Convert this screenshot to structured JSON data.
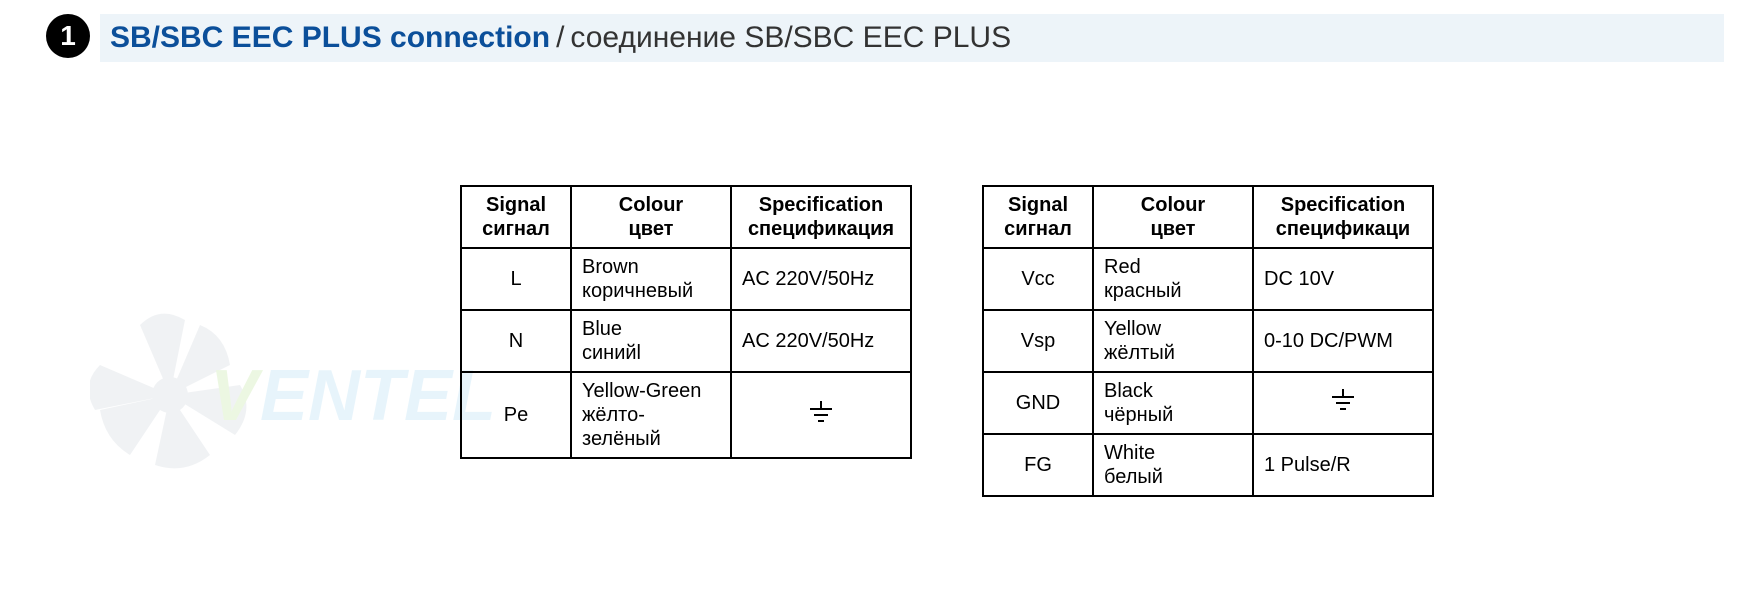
{
  "header": {
    "bullet": "1",
    "title_en": "SB/SBC EEC PLUS connection",
    "separator": " / ",
    "title_ru": "соединение SB/SBC EEC PLUS",
    "bar_background": "#edf4f9",
    "title_en_color": "#0b4f9a",
    "title_ru_color": "#333333",
    "title_fontsize": 30
  },
  "watermark": {
    "text": "VENTEL",
    "fan_color": "#9caab5",
    "text_colors": [
      "#7ecb3a",
      "#5cb9e6"
    ],
    "opacity": 0.14
  },
  "tables": {
    "border_color": "#000000",
    "border_width": 2,
    "font_size": 20,
    "header": {
      "signal_en": "Signal",
      "signal_ru": "сигнал",
      "colour_en": "Colour",
      "colour_ru": "цвет",
      "spec_en": "Specification",
      "spec_ru_1": "спецификация",
      "spec_ru_2": "спецификаци"
    },
    "left": {
      "columns_width": [
        110,
        160,
        180
      ],
      "rows": [
        {
          "signal": "L",
          "colour_en": "Brown",
          "colour_ru": "коричневый",
          "spec": "AC 220V/50Hz",
          "spec_is_ground": false
        },
        {
          "signal": "N",
          "colour_en": "Blue",
          "colour_ru": "синийl",
          "spec": "AC 220V/50Hz",
          "spec_is_ground": false
        },
        {
          "signal": "Pe",
          "colour_en": "Yellow-Green",
          "colour_ru": "жёлто-зелёный",
          "spec": "",
          "spec_is_ground": true
        }
      ]
    },
    "right": {
      "columns_width": [
        110,
        130,
        180
      ],
      "rows": [
        {
          "signal": "Vcc",
          "colour_en": "Red",
          "colour_ru": "красный",
          "spec": "DC 10V",
          "spec_is_ground": false
        },
        {
          "signal": "Vsp",
          "colour_en": "Yellow",
          "colour_ru": "жёлтый",
          "spec": "0-10 DC/PWM",
          "spec_is_ground": false
        },
        {
          "signal": "GND",
          "colour_en": "Black",
          "colour_ru": "чёрный",
          "spec": "",
          "spec_is_ground": true
        },
        {
          "signal": "FG",
          "colour_en": "White",
          "colour_ru": "белый",
          "spec": "1 Pulse/R",
          "spec_is_ground": false
        }
      ]
    }
  }
}
